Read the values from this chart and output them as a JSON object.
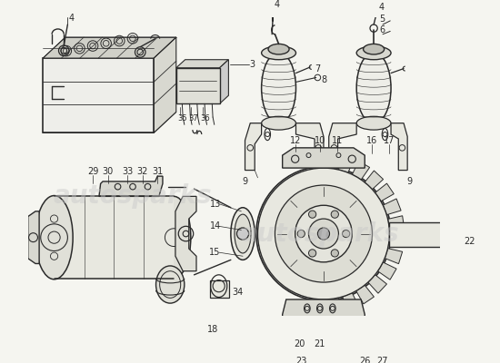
{
  "bg_color": "#f5f5f0",
  "line_color": "#2a2a2a",
  "watermark_color": "#bbbbbb",
  "fig_w": 5.5,
  "fig_h": 4.0,
  "dpi": 100,
  "xlim": [
    0,
    550
  ],
  "ylim": [
    0,
    400
  ]
}
